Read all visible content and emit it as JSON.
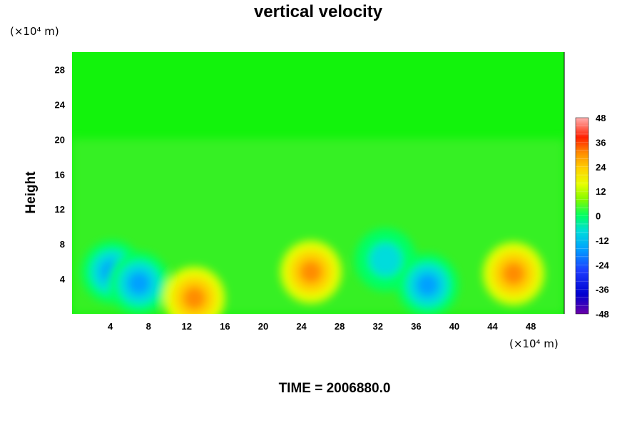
{
  "chart_data": {
    "type": "heatmap",
    "title": "vertical velocity",
    "ylabel": "Height",
    "xlabel": "",
    "y_unit": "(×10⁴ m)",
    "x_unit": "(×10⁴ m)",
    "xlim": [
      0,
      51.5
    ],
    "ylim": [
      0,
      30
    ],
    "x_ticks": [
      "4",
      "8",
      "12",
      "16",
      "20",
      "24",
      "28",
      "32",
      "36",
      "40",
      "44",
      "48"
    ],
    "y_ticks": [
      "4",
      "8",
      "12",
      "16",
      "20",
      "24",
      "28"
    ],
    "colorbar": {
      "range": [
        -48,
        48
      ],
      "ticks": [
        "48",
        "36",
        "24",
        "12",
        "0",
        "-12",
        "-24",
        "-36",
        "-48"
      ],
      "colors": [
        "#6a00a8",
        "#0000d0",
        "#1e3cff",
        "#00a0ff",
        "#00dcdc",
        "#00ff64",
        "#7ffa00",
        "#e6ff00",
        "#ffd200",
        "#ff8c00",
        "#ff2000",
        "#ff7070",
        "#ffb0b0"
      ]
    },
    "features": [
      {
        "x": 4.2,
        "y": 4.8,
        "value": -26,
        "note": "downdraft"
      },
      {
        "x": 7.0,
        "y": 3.5,
        "value": -28
      },
      {
        "x": 12.8,
        "y": 1.8,
        "value": 24
      },
      {
        "x": 25.0,
        "y": 4.8,
        "value": 24
      },
      {
        "x": 32.8,
        "y": 6.2,
        "value": -18
      },
      {
        "x": 37.2,
        "y": 3.3,
        "value": -28
      },
      {
        "x": 46.2,
        "y": 4.6,
        "value": 24
      }
    ],
    "background_value": 0
  },
  "footer": {
    "time_label": "TIME = 2006880.0"
  }
}
